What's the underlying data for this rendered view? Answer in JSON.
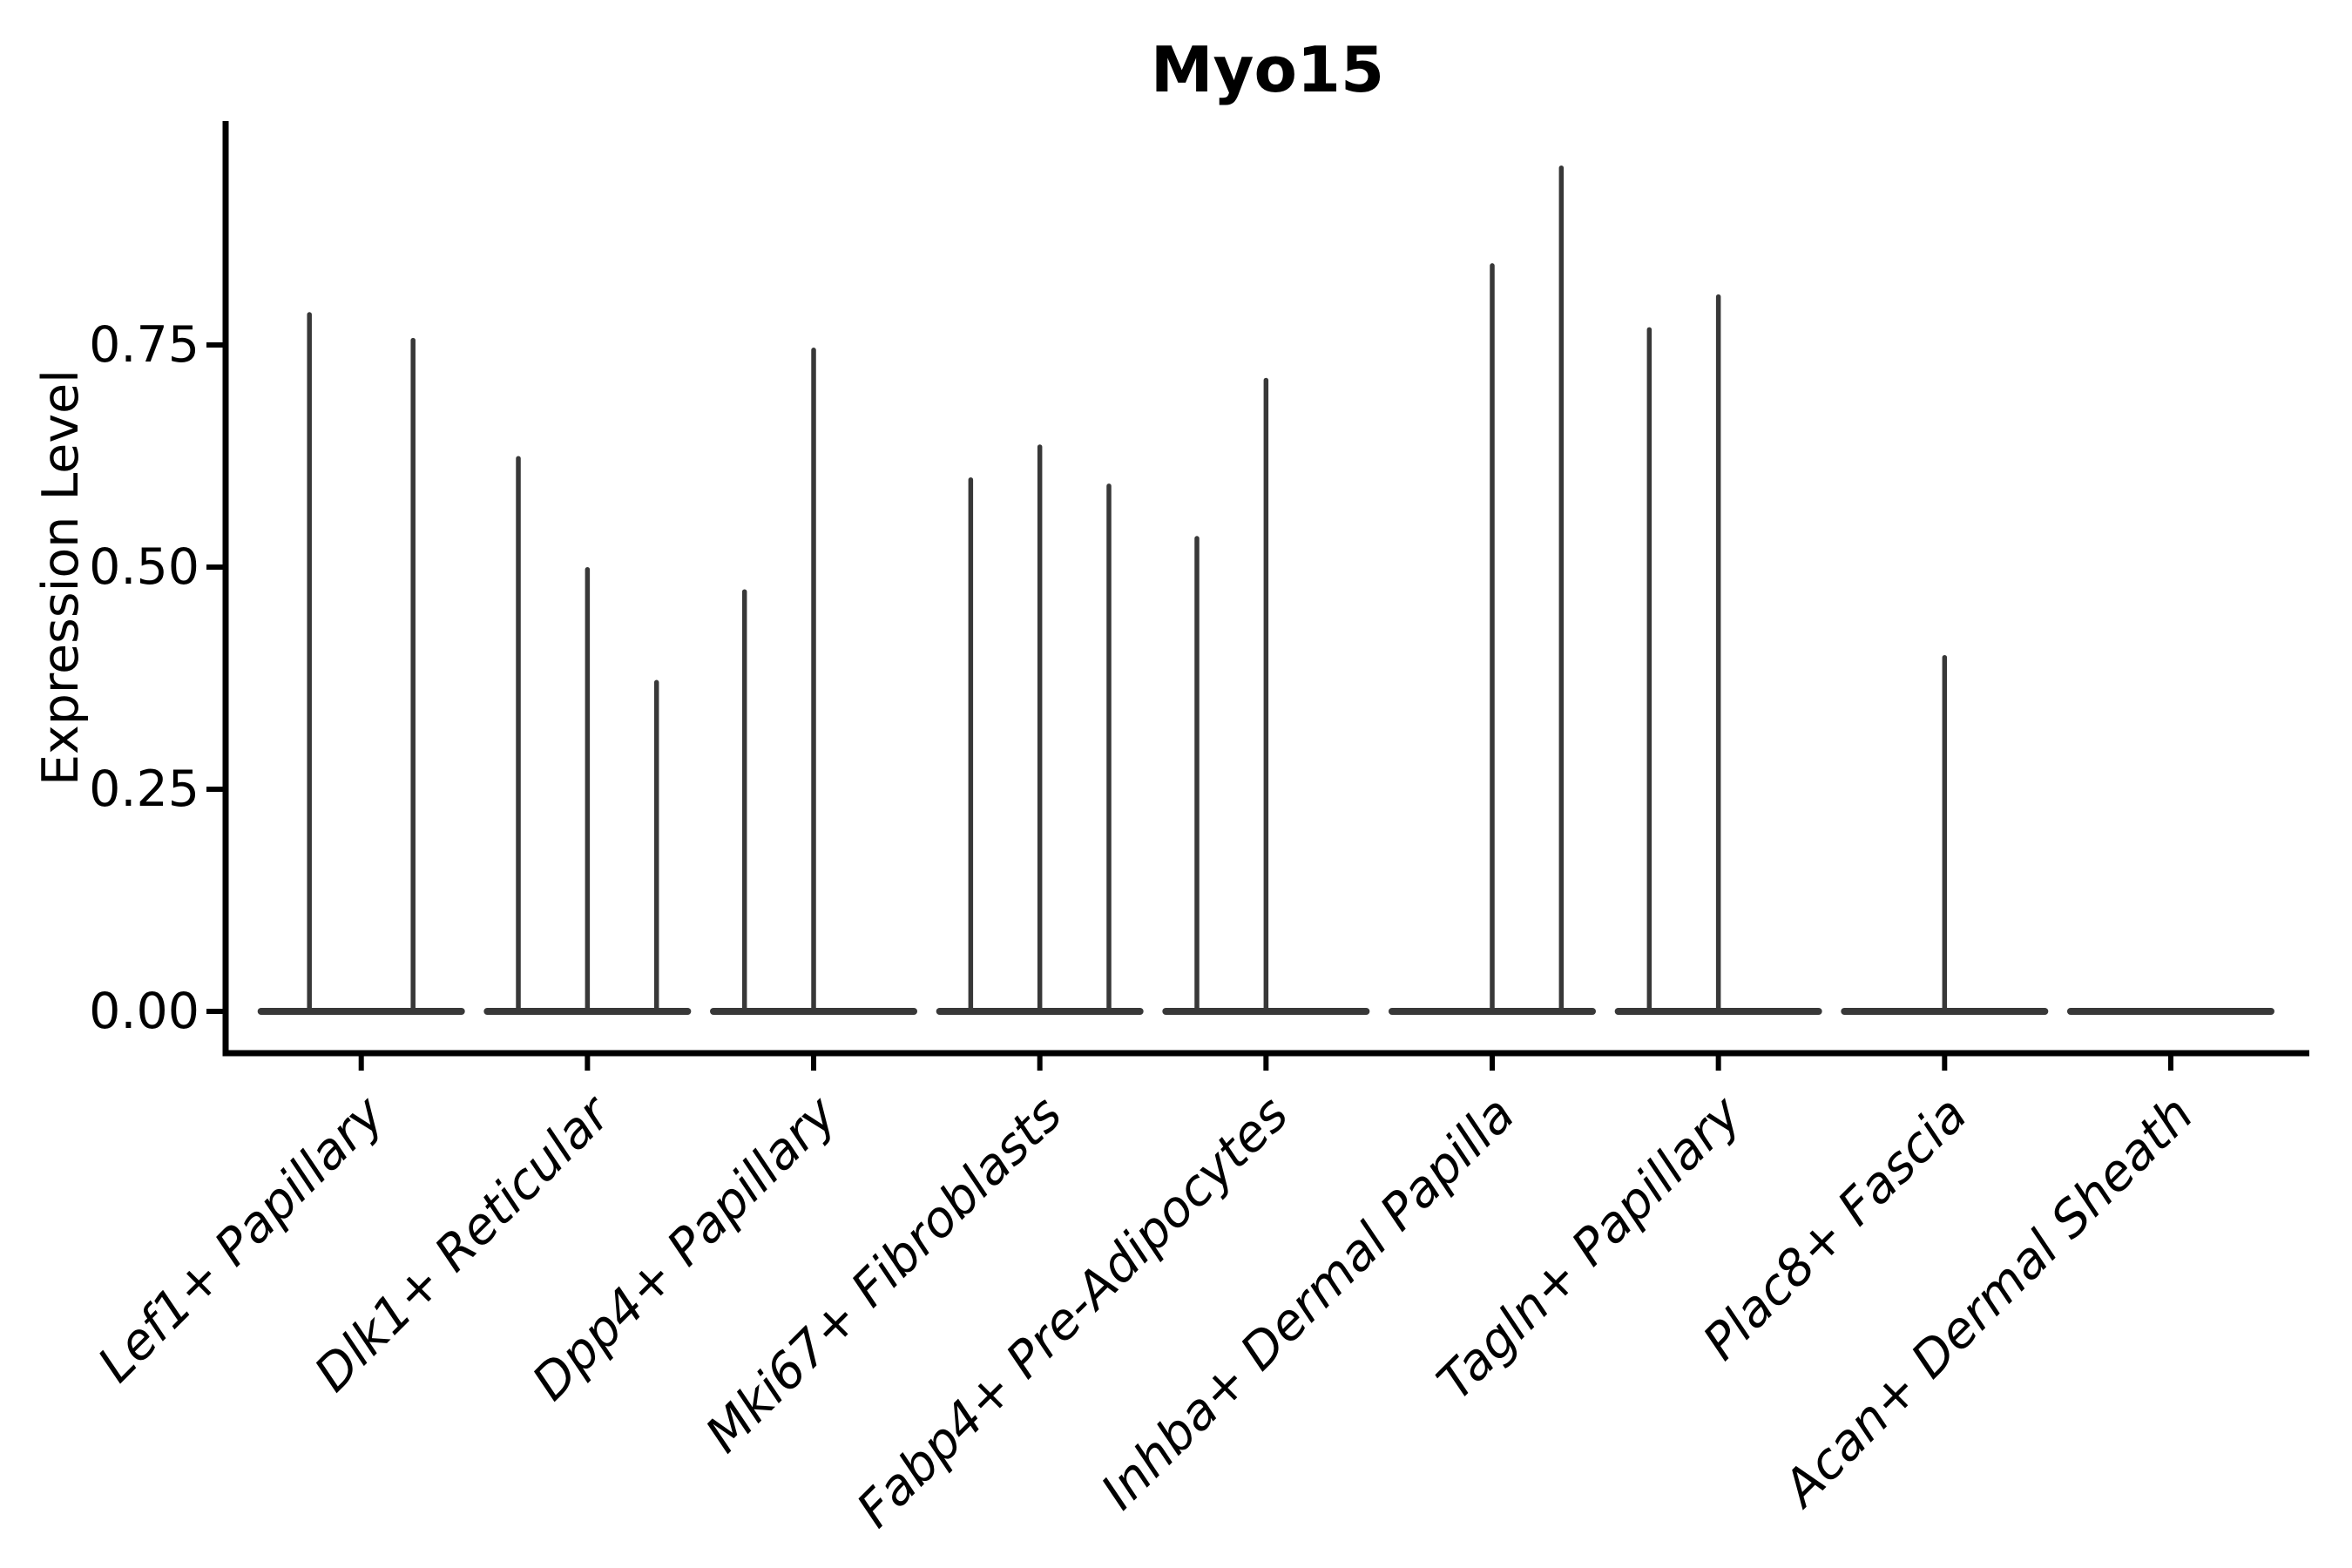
{
  "title": "Myo15",
  "y_axis": {
    "label": "Expression Level",
    "ticks": [
      "0.00",
      "0.25",
      "0.50",
      "0.75"
    ],
    "tick_values": [
      0,
      0.25,
      0.5,
      0.75
    ]
  },
  "chart_data": {
    "type": "violin",
    "title": "Myo15",
    "xlabel": "",
    "ylabel": "Expression Level",
    "ylim": [
      0,
      1.0
    ],
    "yticks": [
      0,
      0.25,
      0.5,
      0.75
    ],
    "grid": false,
    "legend": false,
    "description": "Collapsed violin plot; each category shows flat zero-density violins with thin spikes reaching the peak expression value per violin",
    "categories": [
      "Lef1+ Papillary",
      "Dlk1+ Reticular",
      "Dpp4+ Papillary",
      "Mki67+ Fibroblasts",
      "Fabp4+ Pre-Adipocytes",
      "Inhba+ Dermal Papilla",
      "Tagln+ Papillary",
      "Plac8+ Fascia",
      "Acan+ Dermal Sheath"
    ],
    "groups": [
      {
        "category": "Lef1+ Papillary",
        "violin_peaks": [
          0.787,
          0.758
        ]
      },
      {
        "category": "Dlk1+ Reticular",
        "violin_peaks": [
          0.625,
          0.5,
          0.373
        ]
      },
      {
        "category": "Dpp4+ Papillary",
        "violin_peaks": [
          0.475,
          0.747,
          0
        ]
      },
      {
        "category": "Mki67+ Fibroblasts",
        "violin_peaks": [
          0.601,
          0.638,
          0.594
        ]
      },
      {
        "category": "Fabp4+ Pre-Adipocytes",
        "violin_peaks": [
          0.535,
          0.713,
          0
        ]
      },
      {
        "category": "Inhba+ Dermal Papilla",
        "violin_peaks": [
          0,
          0.842,
          0.952
        ]
      },
      {
        "category": "Tagln+ Papillary",
        "violin_peaks": [
          0.77,
          0.807,
          0
        ]
      },
      {
        "category": "Plac8+ Fascia",
        "violin_peaks": [
          0.401
        ]
      },
      {
        "category": "Acan+ Dermal Sheath",
        "violin_peaks": [
          0
        ]
      }
    ],
    "style": {
      "violin_color": "#383838",
      "spine_color": "#000000",
      "text_color": "#000000",
      "background": "#ffffff"
    }
  }
}
